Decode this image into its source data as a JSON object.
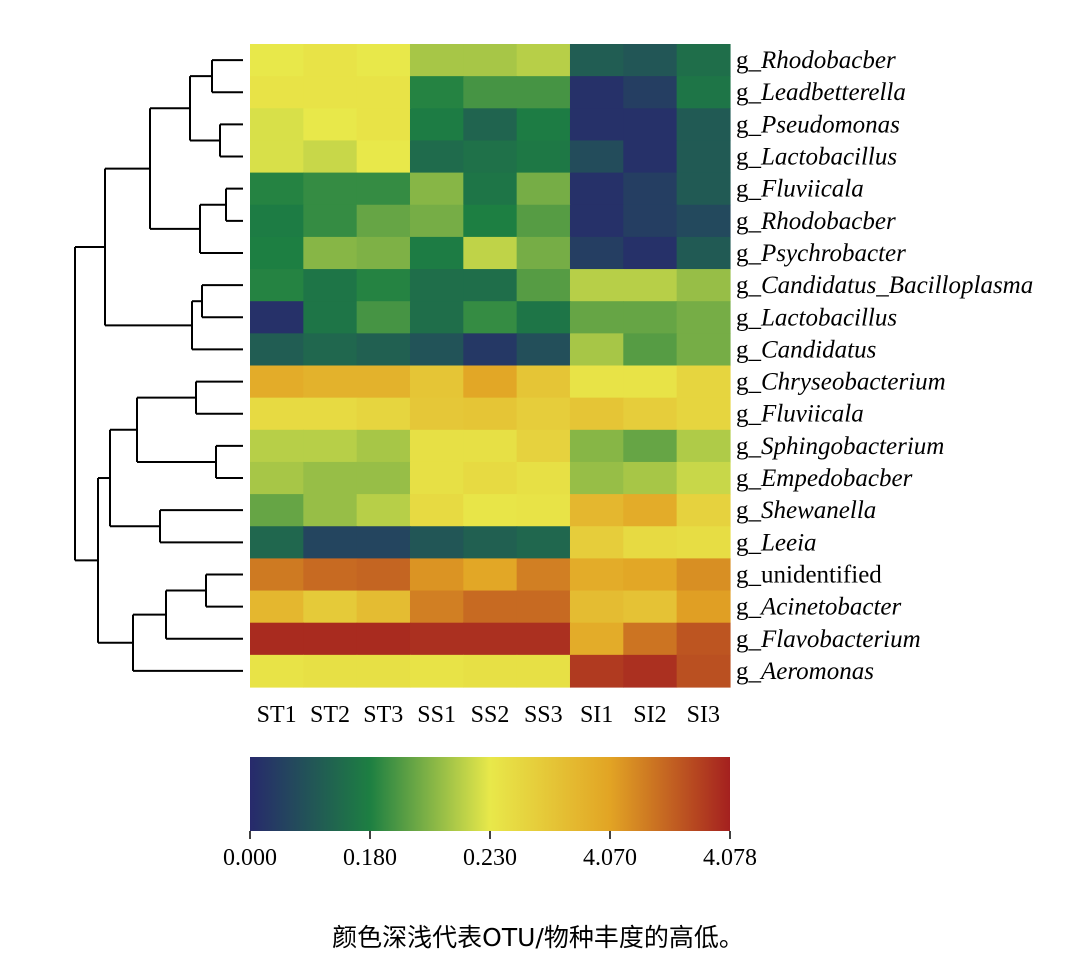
{
  "chart_data": {
    "type": "heatmap",
    "columns": [
      "ST1",
      "ST2",
      "ST3",
      "SS1",
      "SS2",
      "SS3",
      "SI1",
      "SI2",
      "SI3"
    ],
    "rows": [
      {
        "prefix": "g_",
        "name": "Rhodobacber",
        "italic": true
      },
      {
        "prefix": "g_",
        "name": "Leadbetterella",
        "italic": true
      },
      {
        "prefix": "g_",
        "name": "Pseudomonas",
        "italic": true
      },
      {
        "prefix": "g_",
        "name": "Lactobacillus",
        "italic": true
      },
      {
        "prefix": "g_",
        "name": "Fluviicala",
        "italic": true
      },
      {
        "prefix": "g_",
        "name": "Rhodobacber",
        "italic": true
      },
      {
        "prefix": "g_",
        "name": "Psychrobacter",
        "italic": true
      },
      {
        "prefix": "g_",
        "name": "Candidatus_Bacilloplasma",
        "italic": true
      },
      {
        "prefix": "g_",
        "name": "Lactobacillus",
        "italic": true
      },
      {
        "prefix": "g_",
        "name": "Candidatus",
        "italic": true
      },
      {
        "prefix": "g_",
        "name": "Chryseobacterium",
        "italic": true
      },
      {
        "prefix": "g_",
        "name": "Fluviicala",
        "italic": true
      },
      {
        "prefix": "g_",
        "name": "Sphingobacterium",
        "italic": true
      },
      {
        "prefix": "g_",
        "name": "Empedobacber",
        "italic": true
      },
      {
        "prefix": "g_",
        "name": "Shewanella",
        "italic": true
      },
      {
        "prefix": "g_",
        "name": "Leeia",
        "italic": true
      },
      {
        "prefix": "g_",
        "name": "unidentified",
        "italic": false
      },
      {
        "prefix": "g_",
        "name": "Acinetobacter",
        "italic": true
      },
      {
        "prefix": "g_",
        "name": "Flavobacterium",
        "italic": true
      },
      {
        "prefix": "g_",
        "name": "Aeromonas",
        "italic": true
      }
    ],
    "values": [
      [
        0.5,
        0.52,
        0.5,
        0.42,
        0.42,
        0.44,
        0.15,
        0.13,
        0.2
      ],
      [
        0.52,
        0.52,
        0.52,
        0.26,
        0.3,
        0.3,
        0.02,
        0.06,
        0.22
      ],
      [
        0.48,
        0.5,
        0.52,
        0.24,
        0.17,
        0.24,
        0.02,
        0.02,
        0.14
      ],
      [
        0.48,
        0.46,
        0.5,
        0.19,
        0.21,
        0.23,
        0.1,
        0.02,
        0.14
      ],
      [
        0.26,
        0.28,
        0.28,
        0.38,
        0.22,
        0.36,
        0.02,
        0.06,
        0.14
      ],
      [
        0.24,
        0.28,
        0.34,
        0.36,
        0.25,
        0.32,
        0.02,
        0.06,
        0.09
      ],
      [
        0.25,
        0.38,
        0.37,
        0.24,
        0.45,
        0.36,
        0.06,
        0.02,
        0.14
      ],
      [
        0.26,
        0.22,
        0.26,
        0.2,
        0.2,
        0.32,
        0.44,
        0.44,
        0.4
      ],
      [
        0.02,
        0.22,
        0.3,
        0.2,
        0.28,
        0.22,
        0.34,
        0.34,
        0.36
      ],
      [
        0.15,
        0.18,
        0.16,
        0.12,
        0.04,
        0.11,
        0.42,
        0.32,
        0.36
      ],
      [
        0.72,
        0.7,
        0.7,
        0.63,
        0.74,
        0.63,
        0.52,
        0.52,
        0.57
      ],
      [
        0.55,
        0.55,
        0.57,
        0.62,
        0.63,
        0.6,
        0.63,
        0.6,
        0.57
      ],
      [
        0.44,
        0.44,
        0.42,
        0.53,
        0.53,
        0.58,
        0.38,
        0.34,
        0.43
      ],
      [
        0.42,
        0.4,
        0.4,
        0.53,
        0.55,
        0.53,
        0.4,
        0.42,
        0.46
      ],
      [
        0.34,
        0.4,
        0.44,
        0.55,
        0.51,
        0.52,
        0.68,
        0.72,
        0.58
      ],
      [
        0.18,
        0.08,
        0.08,
        0.13,
        0.16,
        0.18,
        0.6,
        0.55,
        0.54
      ],
      [
        0.83,
        0.86,
        0.87,
        0.78,
        0.74,
        0.82,
        0.72,
        0.74,
        0.79
      ],
      [
        0.68,
        0.61,
        0.66,
        0.82,
        0.86,
        0.86,
        0.66,
        0.64,
        0.76
      ],
      [
        0.98,
        0.98,
        0.98,
        0.97,
        0.97,
        0.97,
        0.72,
        0.84,
        0.9
      ],
      [
        0.52,
        0.53,
        0.53,
        0.52,
        0.53,
        0.53,
        0.95,
        0.97,
        0.91
      ]
    ],
    "scale": {
      "tick_labels": [
        "0.000",
        "0.180",
        "0.230",
        "4.070",
        "4.078"
      ],
      "colors": [
        "#272a6c",
        "#1d7f42",
        "#e8e84a",
        "#e2a424",
        "#a4201f"
      ]
    },
    "row_dendrogram": true
  },
  "caption": "颜色深浅代表OTU/物种丰度的高低。"
}
